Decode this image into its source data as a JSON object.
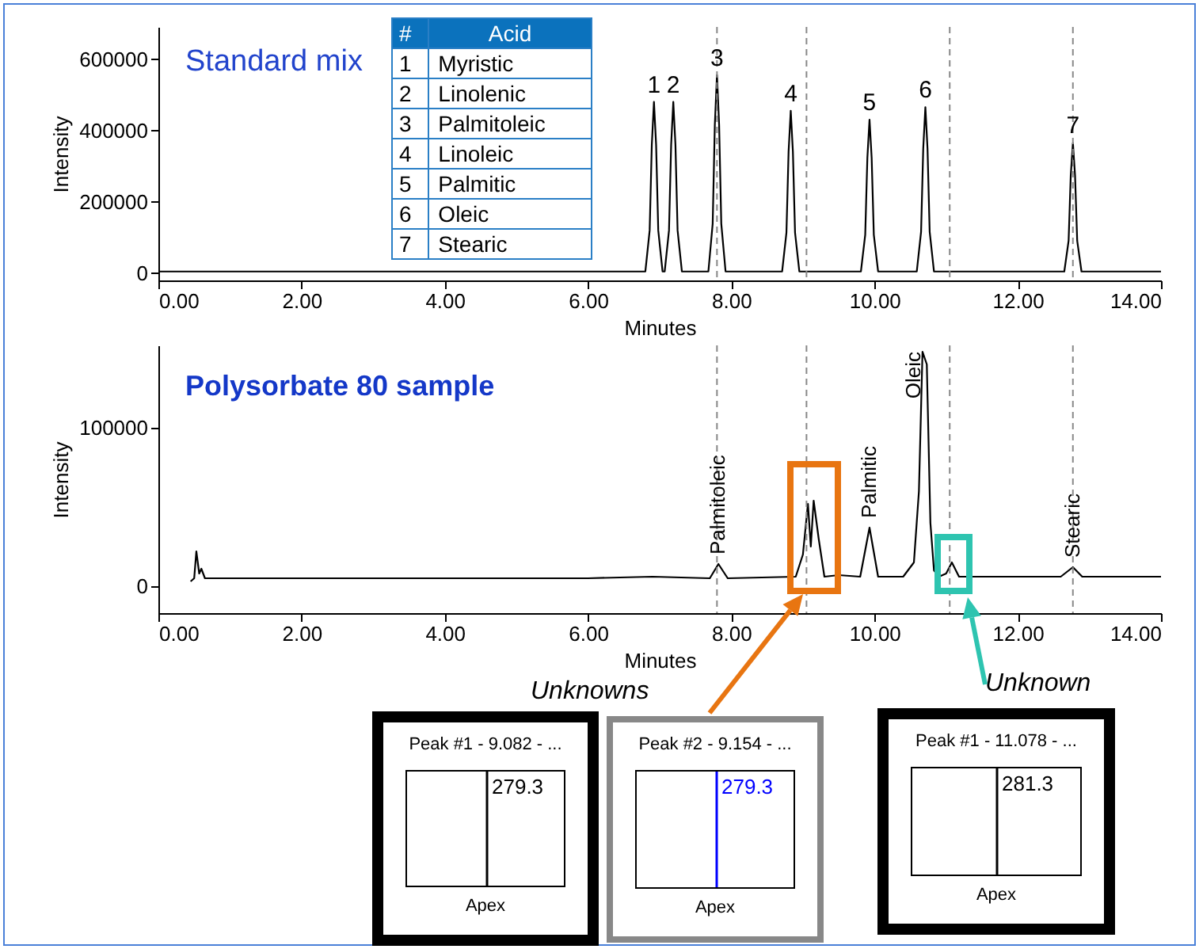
{
  "chart_data": [
    {
      "type": "line",
      "title": "Standard mix",
      "xlabel": "Minutes",
      "ylabel": "Intensity",
      "color": "#000000",
      "x": [
        0,
        6.8,
        6.86,
        6.89,
        6.92,
        6.95,
        6.98,
        7.04,
        7.07,
        7.13,
        7.16,
        7.19,
        7.22,
        7.25,
        7.31,
        7.68,
        7.74,
        7.77,
        7.8,
        7.83,
        7.86,
        7.92,
        8.71,
        8.77,
        8.8,
        8.83,
        8.86,
        8.89,
        8.95,
        9.81,
        9.87,
        9.9,
        9.93,
        9.96,
        9.99,
        10.05,
        10.59,
        10.65,
        10.68,
        10.71,
        10.74,
        10.77,
        10.83,
        12.65,
        12.71,
        12.74,
        12.77,
        12.8,
        12.83,
        12.89,
        14
      ],
      "values": [
        5000,
        5000,
        120000,
        360000,
        480000,
        360000,
        120000,
        5000,
        5000,
        120000,
        360000,
        480000,
        360000,
        120000,
        5000,
        5000,
        139000,
        416000,
        555000,
        416000,
        139000,
        5000,
        5000,
        114000,
        341000,
        455000,
        341000,
        114000,
        5000,
        5000,
        108000,
        323000,
        430000,
        323000,
        108000,
        5000,
        5000,
        116000,
        349000,
        465000,
        349000,
        116000,
        5000,
        5000,
        91000,
        274000,
        365000,
        274000,
        91000,
        5000,
        5000
      ],
      "xlim": [
        0,
        14
      ],
      "xticks": [
        {
          "value": 0,
          "label": "0.00"
        },
        {
          "value": 2,
          "label": "2.00"
        },
        {
          "value": 4,
          "label": "4.00"
        },
        {
          "value": 6,
          "label": "6.00"
        },
        {
          "value": 8,
          "label": "8.00"
        },
        {
          "value": 10,
          "label": "10.00"
        },
        {
          "value": 12,
          "label": "12.00"
        },
        {
          "value": 14,
          "label": "14.00"
        }
      ],
      "ylim": [
        -20000,
        690000
      ],
      "yticks": [
        0,
        200000,
        400000,
        600000
      ],
      "ref_lines": [
        {
          "axis": "x",
          "value": 7.8
        },
        {
          "axis": "x",
          "value": 9.05
        },
        {
          "axis": "x",
          "value": 11.05
        },
        {
          "axis": "x",
          "value": 12.77
        }
      ],
      "annotations": [
        {
          "text": "1",
          "x": 6.92,
          "y": 480000
        },
        {
          "text": "2",
          "x": 7.19,
          "y": 480000
        },
        {
          "text": "3",
          "x": 7.8,
          "y": 555000
        },
        {
          "text": "4",
          "x": 8.83,
          "y": 455000
        },
        {
          "text": "5",
          "x": 9.93,
          "y": 430000
        },
        {
          "text": "6",
          "x": 10.71,
          "y": 465000
        },
        {
          "text": "7",
          "x": 12.77,
          "y": 365000
        }
      ]
    },
    {
      "type": "other",
      "annotations": [
        "#",
        "Acid",
        "1 Myristic",
        "2 Linolenic",
        "3 Palmitoleic",
        "4 Linoleic",
        "5 Palmitic",
        "6 Oleic",
        "7 Stearic"
      ]
    },
    {
      "type": "line",
      "title": "Polysorbate 80 sample",
      "xlabel": "Minutes",
      "ylabel": "Intensity",
      "color": "#000000",
      "x": [
        0.45,
        0.5,
        0.53,
        0.57,
        0.6,
        0.65,
        0.8,
        2,
        4,
        6,
        6.9,
        7.7,
        7.82,
        7.95,
        8.9,
        9.0,
        9.07,
        9.11,
        9.15,
        9.22,
        9.3,
        9.5,
        9.8,
        9.93,
        10.05,
        10.4,
        10.55,
        10.62,
        10.67,
        10.73,
        10.78,
        10.83,
        10.9,
        11.0,
        11.08,
        11.18,
        12.6,
        12.77,
        12.9,
        14.0
      ],
      "values": [
        3000,
        5000,
        22000,
        8000,
        11000,
        5000,
        5000,
        5000,
        5000,
        5000,
        6000,
        5000,
        14000,
        5000,
        6000,
        20000,
        52000,
        25000,
        54000,
        30000,
        6000,
        7000,
        6000,
        37000,
        6000,
        6000,
        15000,
        60000,
        148000,
        140000,
        40000,
        10000,
        6000,
        8000,
        15000,
        6000,
        6000,
        12000,
        6000,
        6000
      ],
      "xlim": [
        0,
        14
      ],
      "xticks": [
        {
          "value": 0,
          "label": "0.00"
        },
        {
          "value": 2,
          "label": "2.00"
        },
        {
          "value": 4,
          "label": "4.00"
        },
        {
          "value": 6,
          "label": "6.00"
        },
        {
          "value": 8,
          "label": "8.00"
        },
        {
          "value": 10,
          "label": "10.00"
        },
        {
          "value": 12,
          "label": "12.00"
        },
        {
          "value": 14,
          "label": "14.00"
        }
      ],
      "ylim": [
        -17000,
        152000
      ],
      "yticks": [
        0,
        100000
      ],
      "ref_lines": [
        {
          "axis": "x",
          "value": 7.8
        },
        {
          "axis": "x",
          "value": 9.05
        },
        {
          "axis": "x",
          "value": 11.05
        },
        {
          "axis": "x",
          "value": 12.77
        }
      ],
      "annotations": [
        {
          "text": "Palmitoleic",
          "x": 7.82,
          "y": 14000
        },
        {
          "text": "Palmitic",
          "x": 9.93,
          "y": 37000
        },
        {
          "text": "Oleic",
          "x": 10.7,
          "y": 148000
        },
        {
          "text": "Stearic",
          "x": 12.77,
          "y": 12000
        },
        "Unknowns",
        "Unknown"
      ]
    },
    {
      "type": "other",
      "title": "Peak #1 - 9.082 - ...",
      "xlabel": "Apex",
      "color": "#000000",
      "annotations": [
        "279.3"
      ]
    },
    {
      "type": "other",
      "title": "Peak #2 - 9.154 - ...",
      "xlabel": "Apex",
      "color": "#0000ff",
      "annotations": [
        "279.3"
      ]
    },
    {
      "type": "other",
      "title": "Peak #1 - 11.078 - ...",
      "xlabel": "Apex",
      "color": "#000000",
      "annotations": [
        "281.3"
      ]
    }
  ]
}
